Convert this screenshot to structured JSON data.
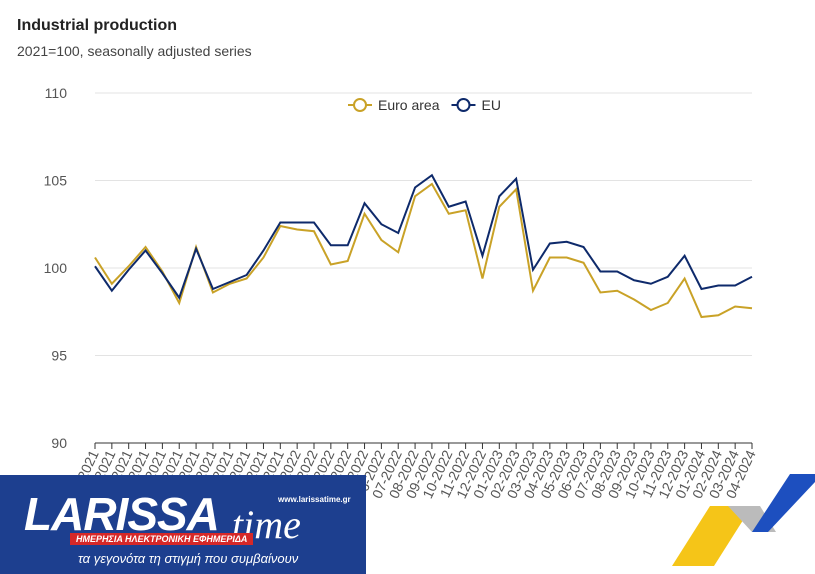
{
  "chart_data": {
    "type": "line",
    "title": "Industrial production",
    "subtitle": "2021=100, seasonally adjusted series",
    "categories": [
      "01-2021",
      "02-2021",
      "03-2021",
      "04-2021",
      "05-2021",
      "06-2021",
      "07-2021",
      "08-2021",
      "09-2021",
      "10-2021",
      "11-2021",
      "12-2021",
      "01-2022",
      "02-2022",
      "03-2022",
      "04-2022",
      "05-2022",
      "06-2022",
      "07-2022",
      "08-2022",
      "09-2022",
      "10-2022",
      "11-2022",
      "12-2022",
      "01-2023",
      "02-2023",
      "03-2023",
      "04-2023",
      "05-2023",
      "06-2023",
      "07-2023",
      "08-2023",
      "09-2023",
      "10-2023",
      "11-2023",
      "12-2023",
      "01-2024",
      "02-2024",
      "03-2024",
      "04-2024"
    ],
    "series": [
      {
        "name": "Euro area",
        "color": "#c9a227",
        "values": [
          100.6,
          99.1,
          100.1,
          101.2,
          99.8,
          98.0,
          101.2,
          98.6,
          99.1,
          99.4,
          100.6,
          102.4,
          102.2,
          102.1,
          100.2,
          100.4,
          103.1,
          101.6,
          100.9,
          104.1,
          104.8,
          103.1,
          103.3,
          99.4,
          103.5,
          104.5,
          98.7,
          100.6,
          100.6,
          100.3,
          98.6,
          98.7,
          98.2,
          97.6,
          98.0,
          99.4,
          97.2,
          97.3,
          97.8,
          97.7
        ]
      },
      {
        "name": "EU",
        "color": "#0e2a6b",
        "values": [
          100.1,
          98.7,
          99.9,
          101.0,
          99.7,
          98.3,
          101.1,
          98.8,
          99.2,
          99.6,
          101.0,
          102.6,
          102.6,
          102.6,
          101.3,
          101.3,
          103.7,
          102.5,
          102.0,
          104.6,
          105.3,
          103.5,
          103.8,
          100.7,
          104.1,
          105.1,
          99.9,
          101.4,
          101.5,
          101.2,
          99.8,
          99.8,
          99.3,
          99.1,
          99.5,
          100.7,
          98.8,
          99.0,
          99.0,
          99.5
        ]
      }
    ],
    "ylim": [
      90,
      110
    ],
    "yticks": [
      90,
      95,
      100,
      105,
      110
    ],
    "grid": true,
    "legend": "top"
  },
  "logo": {
    "brand": "LARISSA",
    "brand2": "time",
    "url": "www.larissatime.gr",
    "tagline": "ΗΜΕΡΗΣΙΑ ΗΛΕΚΤΡΟΝΙΚΗ ΕΦΗΜΕΡΙΔΑ",
    "motto": "τα γεγονότα τη στιγμή που συμβαίνουν"
  }
}
